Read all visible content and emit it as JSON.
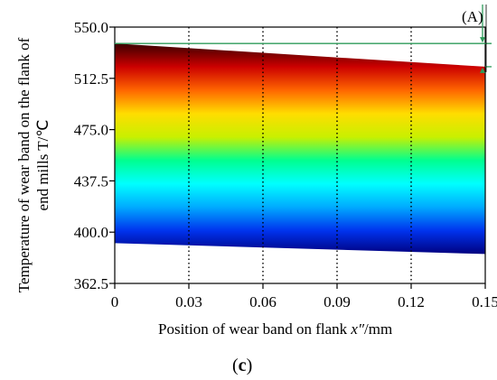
{
  "chart_data": {
    "type": "area",
    "title": "",
    "panel_label": "c",
    "xlabel": {
      "main": "Position of wear band on flank ",
      "var": "x″",
      "unit": "/mm"
    },
    "ylabel": [
      "Temperature of wear band on the flank of",
      "end mills  T/℃"
    ],
    "xlim": [
      0,
      0.15
    ],
    "ylim": [
      362.5,
      550.0
    ],
    "x_ticks": [
      "0",
      "0.03",
      "0.06",
      "0.09",
      "0.12",
      "0.15"
    ],
    "y_ticks": [
      "362.5",
      "400.0",
      "437.5",
      "475.0",
      "512.5",
      "550.0"
    ],
    "grid": "vertical-dotted",
    "upper_boundary": {
      "x": [
        0,
        0.15
      ],
      "y": [
        538,
        521
      ]
    },
    "lower_boundary": {
      "x": [
        0,
        0.15
      ],
      "y": [
        392,
        384
      ]
    },
    "color_scale": [
      "#3a0000",
      "#cc0000",
      "#ff6600",
      "#ffdd00",
      "#c8f000",
      "#00ff90",
      "#00ffff",
      "#00aaff",
      "#0033ee",
      "#000080"
    ],
    "reference_lines": [
      538,
      521
    ],
    "annotation": "(A)"
  }
}
